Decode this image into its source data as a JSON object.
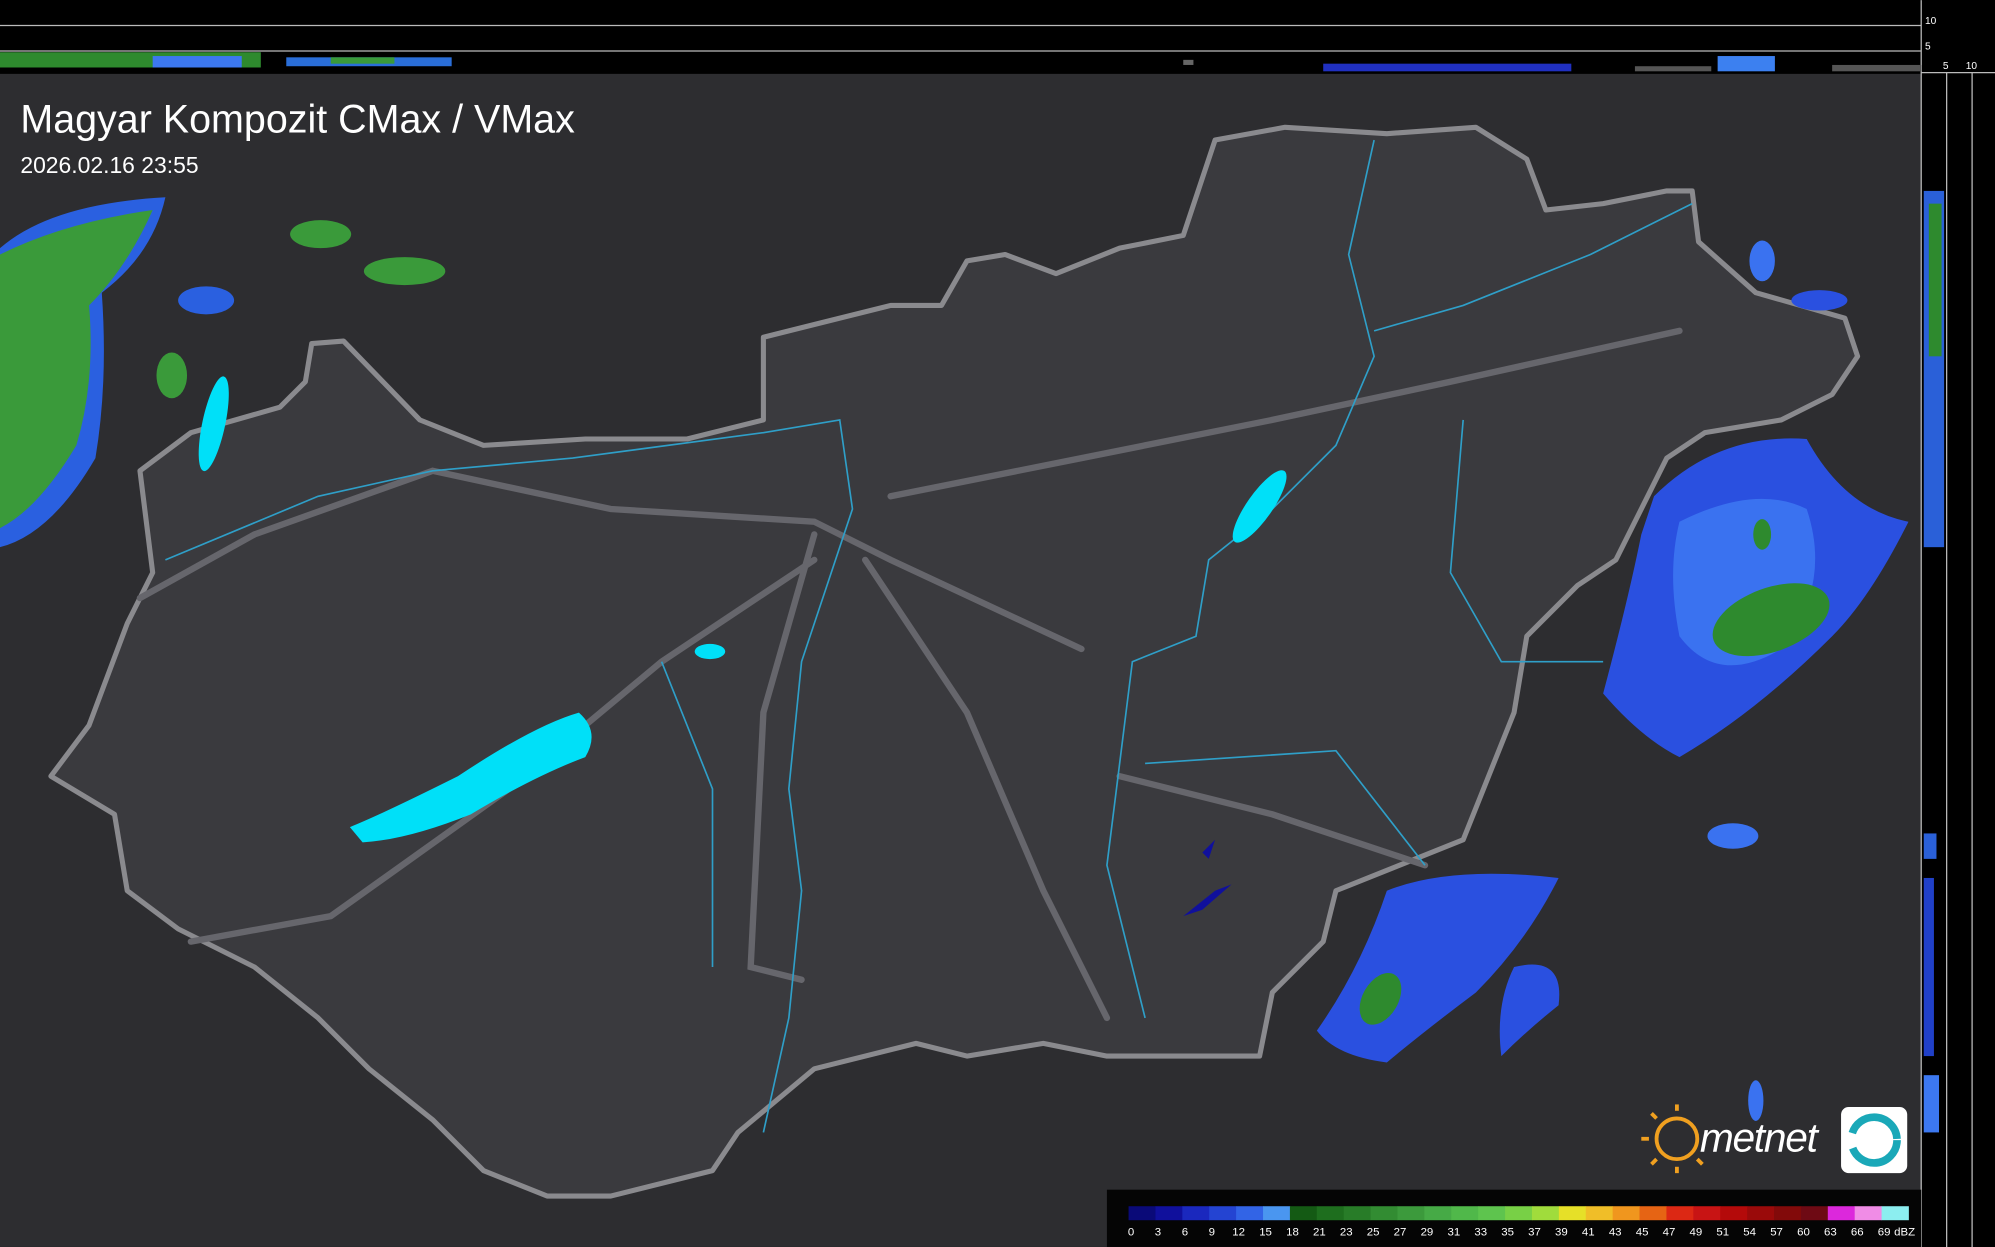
{
  "header": {
    "title": "Magyar Kompozit CMax / VMax",
    "timestamp": "2026.02.16 23:55"
  },
  "profile": {
    "top_ticks": [
      "10",
      "5"
    ],
    "side_ticks": [
      "5",
      "10"
    ]
  },
  "logo": "metnet",
  "legend": {
    "unit": "dBZ",
    "stops": [
      {
        "value": 0,
        "color": "#0a0a78"
      },
      {
        "value": 3,
        "color": "#10109c"
      },
      {
        "value": 6,
        "color": "#1a28be"
      },
      {
        "value": 9,
        "color": "#2444d2"
      },
      {
        "value": 12,
        "color": "#3264e6"
      },
      {
        "value": 15,
        "color": "#4a96f0"
      },
      {
        "value": 18,
        "color": "#145a14"
      },
      {
        "value": 21,
        "color": "#1e6e1e"
      },
      {
        "value": 23,
        "color": "#287c28"
      },
      {
        "value": 25,
        "color": "#328c32"
      },
      {
        "value": 27,
        "color": "#3c9a3c"
      },
      {
        "value": 29,
        "color": "#46aa46"
      },
      {
        "value": 31,
        "color": "#50b84a"
      },
      {
        "value": 33,
        "color": "#5ec44e"
      },
      {
        "value": 35,
        "color": "#78d046"
      },
      {
        "value": 37,
        "color": "#a0dc3c"
      },
      {
        "value": 39,
        "color": "#e6e028"
      },
      {
        "value": 41,
        "color": "#f0be28"
      },
      {
        "value": 43,
        "color": "#f0961e"
      },
      {
        "value": 45,
        "color": "#e66414"
      },
      {
        "value": 47,
        "color": "#dc2814"
      },
      {
        "value": 49,
        "color": "#c81414"
      },
      {
        "value": 51,
        "color": "#b40a0a"
      },
      {
        "value": 54,
        "color": "#9a0a0a"
      },
      {
        "value": 57,
        "color": "#820a0a"
      },
      {
        "value": 60,
        "color": "#6e0a14"
      },
      {
        "value": 63,
        "color": "#dc28dc"
      },
      {
        "value": 66,
        "color": "#f08ce6"
      },
      {
        "value": 69,
        "color": "#8ceef0"
      }
    ]
  }
}
